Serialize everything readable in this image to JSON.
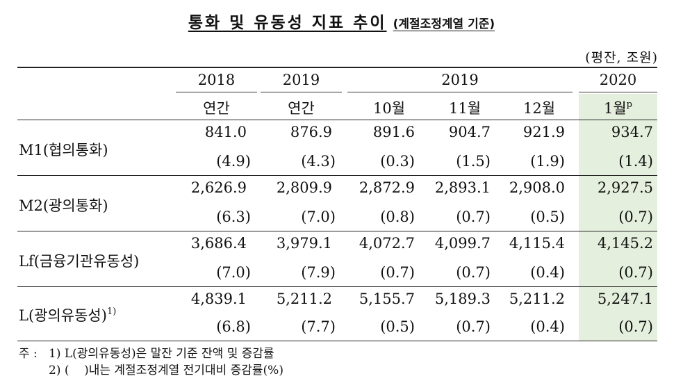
{
  "title": "통화 및 유동성 지표 추이",
  "title_sub": "(계절조정계열 기준)",
  "unit": "(평잔, 조원)",
  "header": {
    "years": [
      "2018",
      "2019",
      "2019",
      "2020"
    ],
    "periods": [
      "연간",
      "연간",
      "10월",
      "11월",
      "12월",
      "1월"
    ],
    "prelim_mark": "p"
  },
  "rows": [
    {
      "label": "M1(협의통화)",
      "sup": "",
      "values": [
        "841.0",
        "876.9",
        "891.6",
        "904.7",
        "921.9",
        "934.7"
      ],
      "changes": [
        "(4.9)",
        "(4.3)",
        "(0.3)",
        "(1.5)",
        "(1.9)",
        "(1.4)"
      ]
    },
    {
      "label": "M2(광의통화)",
      "sup": "",
      "values": [
        "2,626.9",
        "2,809.9",
        "2,872.9",
        "2,893.1",
        "2,908.0",
        "2,927.5"
      ],
      "changes": [
        "(6.3)",
        "(7.0)",
        "(0.8)",
        "(0.7)",
        "(0.5)",
        "(0.7)"
      ]
    },
    {
      "label": "Lf(금융기관유동성)",
      "sup": "",
      "values": [
        "3,686.4",
        "3,979.1",
        "4,072.7",
        "4,099.7",
        "4,115.4",
        "4,145.2"
      ],
      "changes": [
        "(7.0)",
        "(7.9)",
        "(0.7)",
        "(0.7)",
        "(0.4)",
        "(0.7)"
      ]
    },
    {
      "label": "L(광의유동성)",
      "sup": "1)",
      "values": [
        "4,839.1",
        "5,211.2",
        "5,155.7",
        "5,189.3",
        "5,211.2",
        "5,247.1"
      ],
      "changes": [
        "(6.8)",
        "(7.7)",
        "(0.5)",
        "(0.7)",
        "(0.4)",
        "(0.7)"
      ]
    }
  ],
  "notes": {
    "prefix": "주 :",
    "note1": "1) L(광의유동성)은 말잔 기준 잔액 및 증감률",
    "note2": "2) (    )내는 계절조정계열 전기대비 증감률(%)"
  },
  "colors": {
    "highlight": "#e5efdd",
    "text": "#111111",
    "rule": "#222222"
  }
}
